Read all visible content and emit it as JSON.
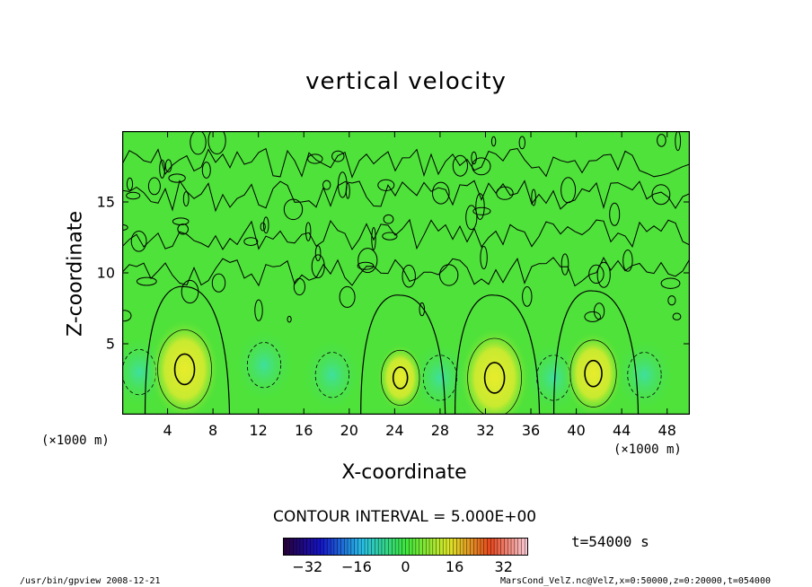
{
  "chart_data": {
    "type": "heatmap",
    "title": "vertical velocity",
    "xlabel": "X-coordinate",
    "ylabel": "Z-coordinate",
    "x_unit": "(×1000 m)",
    "y_unit": "(×1000 m)",
    "xlim": [
      0,
      50
    ],
    "ylim": [
      0,
      20
    ],
    "xticks": [
      "4",
      "8",
      "12",
      "16",
      "20",
      "24",
      "28",
      "32",
      "36",
      "40",
      "44",
      "48"
    ],
    "yticks": [
      "5",
      "10",
      "15"
    ],
    "contour_interval_label": "CONTOUR INTERVAL = 5.000E+00",
    "contour_interval": 5,
    "time_label": "t=54000 s",
    "colorbar": {
      "range": [
        -40,
        40
      ],
      "ticks": [
        "−32",
        "−16",
        "0",
        "16",
        "32"
      ]
    },
    "updraft_cores": [
      {
        "x": 5.5,
        "z": 3.2,
        "value": 12
      },
      {
        "x": 24.5,
        "z": 2.6,
        "value": 8
      },
      {
        "x": 32.8,
        "z": 2.6,
        "value": 12
      },
      {
        "x": 41.5,
        "z": 2.9,
        "value": 10
      }
    ],
    "downdraft_cores": [
      {
        "x": 1.5,
        "z": 3.0,
        "value": -4
      },
      {
        "x": 12.5,
        "z": 3.5,
        "value": -3
      },
      {
        "x": 18.5,
        "z": 2.8,
        "value": -3
      },
      {
        "x": 28.0,
        "z": 2.6,
        "value": -4
      },
      {
        "x": 38.0,
        "z": 2.6,
        "value": -5
      },
      {
        "x": 46.0,
        "z": 2.8,
        "value": -3
      }
    ],
    "colors": {
      "background_field": "#4ee23a",
      "updraft": "#c8ea30",
      "downdraft": "#3ee0a0",
      "contour": "#000000"
    }
  },
  "footer": {
    "left": "/usr/bin/gpview   2008-12-21",
    "right": "MarsCond_VelZ.nc@VelZ,x=0:50000,z=0:20000,t=054000"
  }
}
